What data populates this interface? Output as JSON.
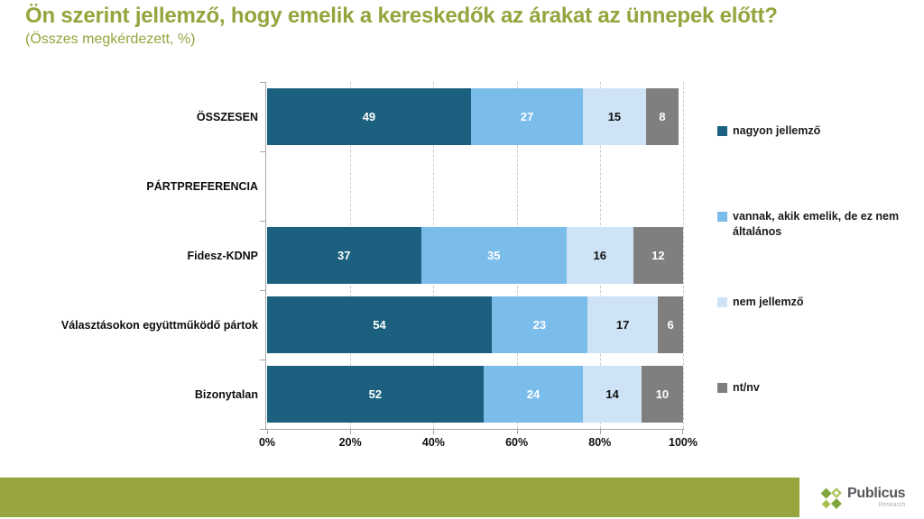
{
  "title": "Ön szerint jellemző, hogy emelik a kereskedők az árakat az ünnepek előtt?",
  "subtitle": "(Összes megkérdezett, %)",
  "colors": {
    "title_olive": "#94A53D",
    "footer_olive": "#98A53E",
    "axis_gray": "#A6A6A6",
    "gridline_gray": "#CCCCCC"
  },
  "chart_data": {
    "type": "bar",
    "stacked": true,
    "orientation": "horizontal",
    "title": "Ön szerint jellemző, hogy emelik a kereskedők az árakat az ünnepek előtt?",
    "subtitle": "(Összes megkérdezett, %)",
    "categories": [
      "ÖSSZESEN",
      "PÁRTPREFERENCIA",
      "Fidesz-KDNP",
      "Választásokon együttműködő pártok",
      "Bizonytalan"
    ],
    "series": [
      {
        "name": "nagyon jellemző",
        "color": "#1B607F",
        "label_color": "#ffffff",
        "values": [
          49,
          null,
          37,
          54,
          52
        ]
      },
      {
        "name": "vannak, akik emelik, de ez nem általános",
        "color": "#7ABCEA",
        "label_color": "#ffffff",
        "values": [
          27,
          null,
          35,
          23,
          24
        ]
      },
      {
        "name": "nem jellemző",
        "color": "#CEE4F6",
        "label_color": "#111111",
        "values": [
          15,
          null,
          16,
          17,
          14
        ]
      },
      {
        "name": "nt/nv",
        "color": "#7F7F7F",
        "label_color": "#ffffff",
        "values": [
          8,
          null,
          12,
          6,
          10
        ]
      }
    ],
    "x_ticks": [
      "0%",
      "20%",
      "40%",
      "60%",
      "80%",
      "100%"
    ],
    "xlim": [
      0,
      100
    ],
    "grid": "dashed-vertical",
    "legend_position": "right"
  },
  "footer": {
    "brand": "Publicus",
    "brand_sub": "Research"
  }
}
